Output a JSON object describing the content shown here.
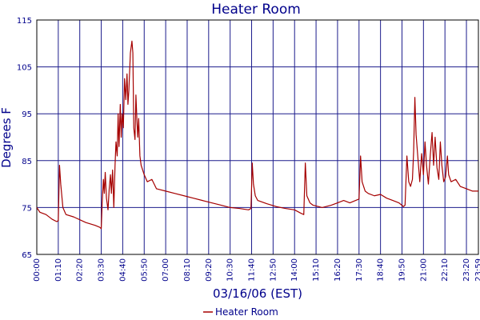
{
  "chart_data": {
    "type": "line",
    "title": "Heater Room",
    "xlabel": "03/16/06 (EST)",
    "ylabel": "Degrees F",
    "ylim": [
      65,
      115
    ],
    "yticks": [
      65,
      75,
      85,
      95,
      105,
      115
    ],
    "xlim_minutes": [
      0,
      1439
    ],
    "xticks": [
      "00:00",
      "01:10",
      "02:20",
      "03:30",
      "04:40",
      "05:50",
      "07:00",
      "08:10",
      "09:20",
      "10:30",
      "11:40",
      "12:50",
      "14:00",
      "15:10",
      "16:20",
      "17:30",
      "18:40",
      "19:50",
      "21:00",
      "22:10",
      "23:20",
      "23:59"
    ],
    "grid": true,
    "legend": "bottom-center",
    "series": [
      {
        "name": "Heater Room",
        "color": "#a50000",
        "points": [
          [
            "00:00",
            75.0
          ],
          [
            "00:10",
            74.0
          ],
          [
            "00:30",
            73.5
          ],
          [
            "00:50",
            72.5
          ],
          [
            "01:05",
            72.0
          ],
          [
            "01:10",
            72.2
          ],
          [
            "01:14",
            84.0
          ],
          [
            "01:18",
            80.0
          ],
          [
            "01:25",
            75.0
          ],
          [
            "01:35",
            73.5
          ],
          [
            "02:00",
            73.0
          ],
          [
            "02:40",
            71.8
          ],
          [
            "03:10",
            71.2
          ],
          [
            "03:25",
            70.8
          ],
          [
            "03:30",
            70.5
          ],
          [
            "03:33",
            76.0
          ],
          [
            "03:37",
            81.0
          ],
          [
            "03:40",
            78.0
          ],
          [
            "03:43",
            82.5
          ],
          [
            "03:47",
            77.0
          ],
          [
            "03:52",
            74.5
          ],
          [
            "03:56",
            79.0
          ],
          [
            "04:00",
            82.0
          ],
          [
            "04:03",
            78.0
          ],
          [
            "04:07",
            83.0
          ],
          [
            "04:11",
            75.0
          ],
          [
            "04:15",
            84.0
          ],
          [
            "04:18",
            89.0
          ],
          [
            "04:22",
            86.0
          ],
          [
            "04:25",
            95.0
          ],
          [
            "04:28",
            88.0
          ],
          [
            "04:32",
            97.0
          ],
          [
            "04:35",
            90.0
          ],
          [
            "04:38",
            95.0
          ],
          [
            "04:42",
            92.0
          ],
          [
            "04:46",
            102.5
          ],
          [
            "04:50",
            98.0
          ],
          [
            "04:54",
            103.5
          ],
          [
            "04:57",
            97.0
          ],
          [
            "05:00",
            100.0
          ],
          [
            "05:05",
            108.0
          ],
          [
            "05:10",
            110.5
          ],
          [
            "05:13",
            108.0
          ],
          [
            "05:16",
            92.0
          ],
          [
            "05:20",
            89.5
          ],
          [
            "05:23",
            99.0
          ],
          [
            "05:26",
            94.0
          ],
          [
            "05:29",
            90.0
          ],
          [
            "05:32",
            94.0
          ],
          [
            "05:36",
            86.0
          ],
          [
            "05:40",
            84.0
          ],
          [
            "05:50",
            82.0
          ],
          [
            "06:00",
            80.5
          ],
          [
            "06:15",
            81.0
          ],
          [
            "06:30",
            79.0
          ],
          [
            "07:00",
            78.5
          ],
          [
            "07:30",
            78.0
          ],
          [
            "08:00",
            77.5
          ],
          [
            "08:30",
            77.0
          ],
          [
            "09:00",
            76.5
          ],
          [
            "09:30",
            76.0
          ],
          [
            "10:00",
            75.5
          ],
          [
            "10:30",
            75.0
          ],
          [
            "11:00",
            74.8
          ],
          [
            "11:30",
            74.5
          ],
          [
            "11:38",
            74.8
          ],
          [
            "11:42",
            84.5
          ],
          [
            "11:46",
            80.0
          ],
          [
            "11:52",
            77.5
          ],
          [
            "12:00",
            76.5
          ],
          [
            "12:30",
            75.8
          ],
          [
            "13:00",
            75.2
          ],
          [
            "13:30",
            74.8
          ],
          [
            "14:00",
            74.5
          ],
          [
            "14:20",
            73.8
          ],
          [
            "14:30",
            73.5
          ],
          [
            "14:35",
            84.5
          ],
          [
            "14:40",
            77.5
          ],
          [
            "14:50",
            76.0
          ],
          [
            "15:00",
            75.5
          ],
          [
            "15:30",
            75.0
          ],
          [
            "16:00",
            75.5
          ],
          [
            "16:20",
            76.0
          ],
          [
            "16:40",
            76.5
          ],
          [
            "17:00",
            76.0
          ],
          [
            "17:30",
            76.8
          ],
          [
            "17:35",
            86.0
          ],
          [
            "17:40",
            80.5
          ],
          [
            "17:50",
            78.5
          ],
          [
            "18:00",
            78.0
          ],
          [
            "18:20",
            77.5
          ],
          [
            "18:40",
            77.8
          ],
          [
            "19:00",
            77.0
          ],
          [
            "19:20",
            76.5
          ],
          [
            "19:40",
            76.0
          ],
          [
            "19:55",
            75.2
          ],
          [
            "20:00",
            75.5
          ],
          [
            "20:06",
            86.0
          ],
          [
            "20:12",
            80.5
          ],
          [
            "20:18",
            79.5
          ],
          [
            "20:24",
            81.0
          ],
          [
            "20:28",
            87.0
          ],
          [
            "20:32",
            98.5
          ],
          [
            "20:36",
            90.5
          ],
          [
            "20:42",
            85.5
          ],
          [
            "20:48",
            80.5
          ],
          [
            "20:54",
            86.5
          ],
          [
            "21:00",
            82.0
          ],
          [
            "21:05",
            89.0
          ],
          [
            "21:10",
            84.0
          ],
          [
            "21:16",
            80.0
          ],
          [
            "21:22",
            86.0
          ],
          [
            "21:28",
            91.0
          ],
          [
            "21:33",
            84.0
          ],
          [
            "21:38",
            90.0
          ],
          [
            "21:44",
            83.5
          ],
          [
            "21:50",
            81.0
          ],
          [
            "21:55",
            89.0
          ],
          [
            "22:00",
            84.0
          ],
          [
            "22:06",
            80.5
          ],
          [
            "22:12",
            81.5
          ],
          [
            "22:18",
            86.0
          ],
          [
            "22:22",
            82.0
          ],
          [
            "22:30",
            80.5
          ],
          [
            "22:45",
            81.0
          ],
          [
            "23:00",
            79.5
          ],
          [
            "23:20",
            79.0
          ],
          [
            "23:40",
            78.5
          ],
          [
            "23:59",
            78.5
          ]
        ]
      }
    ]
  }
}
